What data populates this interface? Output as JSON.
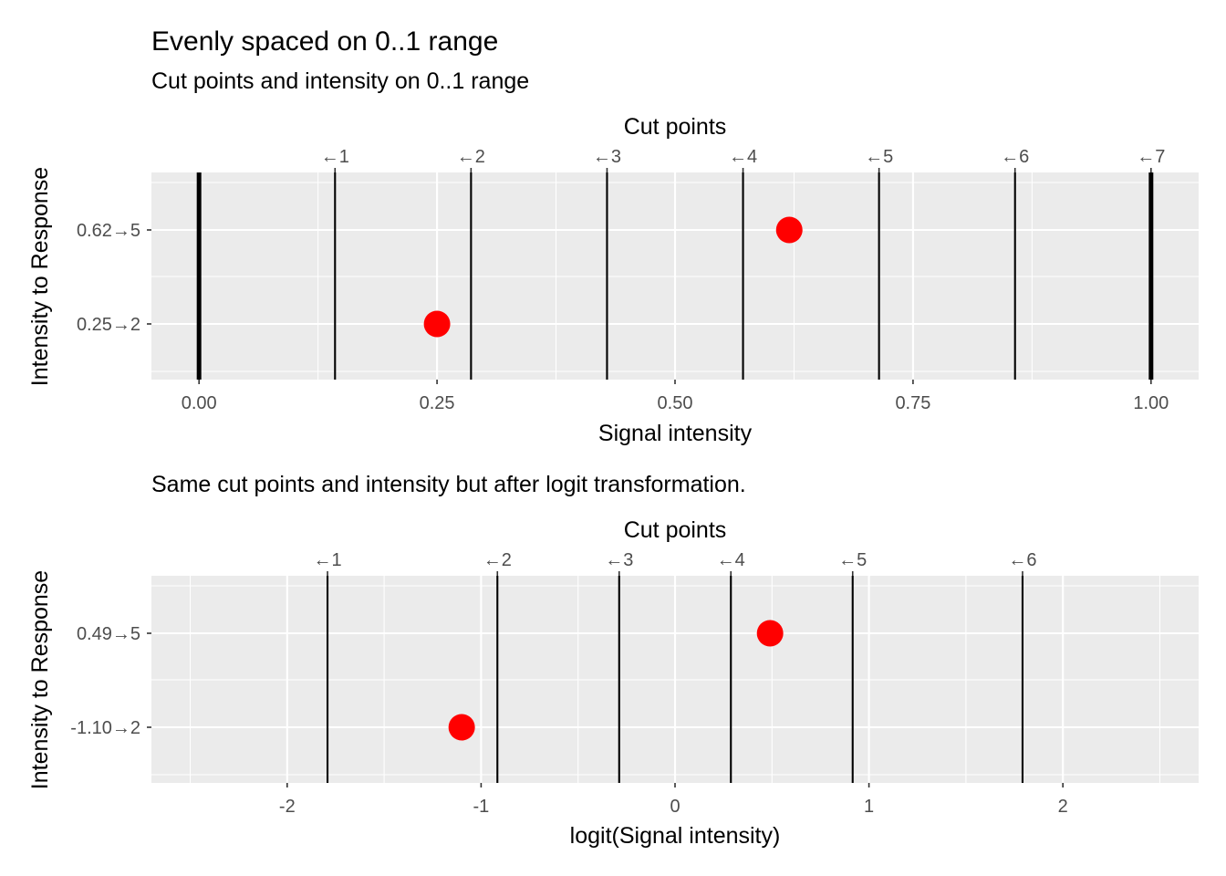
{
  "figure": {
    "title": "Evenly spaced on 0..1 range"
  },
  "chart_data": [
    {
      "type": "scatter",
      "subtitle": "Cut points and intensity on 0..1 range",
      "xlabel": "Signal intensity",
      "x2label": "Cut points",
      "ylabel": "Intensity to Response",
      "xlim": [
        -0.05,
        1.05
      ],
      "x_major_ticks": [
        0,
        0.25,
        0.5,
        0.75,
        1
      ],
      "x_tick_labels": [
        "0.00",
        "0.25",
        "0.50",
        "0.75",
        "1.00"
      ],
      "x_minor_ticks": [
        0.125,
        0.375,
        0.625,
        0.875
      ],
      "y_categories": [
        "0.25→2",
        "0.62→5"
      ],
      "cut_points": [
        {
          "x": 0,
          "label": "",
          "bold": true
        },
        {
          "x": 0.142857,
          "label": "←1"
        },
        {
          "x": 0.285714,
          "label": "←2"
        },
        {
          "x": 0.428571,
          "label": "←3"
        },
        {
          "x": 0.571429,
          "label": "←4"
        },
        {
          "x": 0.714286,
          "label": "←5"
        },
        {
          "x": 0.857143,
          "label": "←6"
        },
        {
          "x": 1,
          "label": "←7",
          "bold": true
        }
      ],
      "points": [
        {
          "x": 0.25,
          "category": "0.25→2"
        },
        {
          "x": 0.62,
          "category": "0.62→5"
        }
      ],
      "point_color": "#ff0000",
      "grid": true
    },
    {
      "type": "scatter",
      "subtitle": "Same cut points and intensity but after logit transformation.",
      "xlabel": "logit(Signal intensity)",
      "x2label": "Cut points",
      "ylabel": "Intensity to Response",
      "xlim": [
        -2.7,
        2.7
      ],
      "x_major_ticks": [
        -2,
        -1,
        0,
        1,
        2
      ],
      "x_tick_labels": [
        "-2",
        "-1",
        "0",
        "1",
        "2"
      ],
      "x_minor_ticks": [
        -2.5,
        -1.5,
        -0.5,
        0.5,
        1.5,
        2.5
      ],
      "y_categories": [
        "-1.10→2",
        "0.49→5"
      ],
      "cut_points": [
        {
          "x": -1.792,
          "label": "←1"
        },
        {
          "x": -0.916,
          "label": "←2"
        },
        {
          "x": -0.288,
          "label": "←3"
        },
        {
          "x": 0.288,
          "label": "←4"
        },
        {
          "x": 0.916,
          "label": "←5"
        },
        {
          "x": 1.792,
          "label": "←6"
        }
      ],
      "points": [
        {
          "x": -1.1,
          "category": "-1.10→2"
        },
        {
          "x": 0.49,
          "category": "0.49→5"
        }
      ],
      "point_color": "#ff0000",
      "grid": true
    }
  ]
}
